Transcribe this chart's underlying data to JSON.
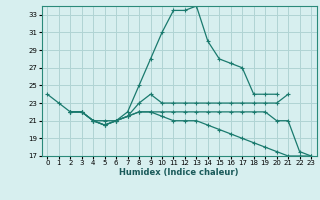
{
  "title": "",
  "xlabel": "Humidex (Indice chaleur)",
  "ylabel": "",
  "bg_color": "#d7efef",
  "grid_color": "#b0d4d4",
  "line_color": "#1a7a6e",
  "xlim": [
    -0.5,
    23.5
  ],
  "ylim": [
    17,
    34
  ],
  "yticks": [
    17,
    19,
    21,
    23,
    25,
    27,
    29,
    31,
    33
  ],
  "xticks": [
    0,
    1,
    2,
    3,
    4,
    5,
    6,
    7,
    8,
    9,
    10,
    11,
    12,
    13,
    14,
    15,
    16,
    17,
    18,
    19,
    20,
    21,
    22,
    23
  ],
  "lines": [
    {
      "x": [
        0,
        1,
        2,
        3,
        4,
        5,
        6,
        7,
        8,
        9,
        10,
        11,
        12,
        13,
        14,
        15,
        16,
        17,
        18,
        19,
        20
      ],
      "y": [
        24,
        23,
        22,
        22,
        21,
        21,
        21,
        22,
        25,
        28,
        31,
        33.5,
        33.5,
        34,
        30,
        28,
        27.5,
        27,
        24,
        24,
        24
      ]
    },
    {
      "x": [
        2,
        3,
        4,
        5,
        6,
        7,
        8,
        9,
        10,
        11,
        12,
        13,
        14,
        15,
        16,
        17,
        18,
        19,
        20,
        21
      ],
      "y": [
        22,
        22,
        21,
        20.5,
        21,
        21.5,
        23,
        24,
        23,
        23,
        23,
        23,
        23,
        23,
        23,
        23,
        23,
        23,
        23,
        24
      ]
    },
    {
      "x": [
        2,
        3,
        4,
        5,
        6,
        7,
        8,
        9,
        10,
        11,
        12,
        13,
        14,
        15,
        16,
        17,
        18,
        19,
        20,
        21,
        22,
        23
      ],
      "y": [
        22,
        22,
        21,
        20.5,
        21,
        21.5,
        22,
        22,
        22,
        22,
        22,
        22,
        22,
        22,
        22,
        22,
        22,
        22,
        21,
        21,
        17.5,
        17
      ]
    },
    {
      "x": [
        2,
        3,
        4,
        5,
        6,
        7,
        8,
        9,
        10,
        11,
        12,
        13,
        14,
        15,
        16,
        17,
        18,
        19,
        20,
        21,
        22,
        23
      ],
      "y": [
        22,
        22,
        21,
        20.5,
        21,
        21.5,
        22,
        22,
        21.5,
        21,
        21,
        21,
        20.5,
        20,
        19.5,
        19,
        18.5,
        18,
        17.5,
        17,
        17,
        17
      ]
    }
  ]
}
